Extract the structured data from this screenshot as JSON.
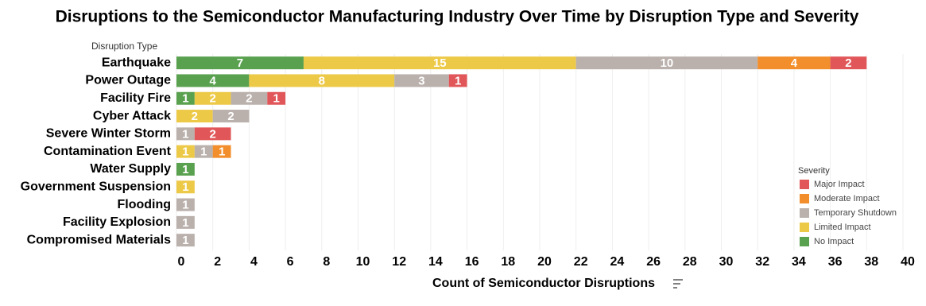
{
  "chart_data": {
    "type": "stacked-bar-horizontal",
    "title": "Disruptions to the Semiconductor Manufacturing Industry Over Time by Disruption Type and Severity",
    "y_axis_title": "Disruption Type",
    "x_axis_title": "Count of Semiconductor Disruptions",
    "legend_title": "Severity",
    "legend_position": "right",
    "categories": [
      "Earthquake",
      "Power Outage",
      "Facility Fire",
      "Cyber Attack",
      "Severe Winter Storm",
      "Contamination Event",
      "Water Supply",
      "Government Suspension",
      "Flooding",
      "Facility Explosion",
      "Compromised Materials"
    ],
    "series": [
      {
        "name": "No Impact",
        "color": "#59a14f",
        "values": [
          7,
          4,
          1,
          null,
          null,
          null,
          1,
          null,
          null,
          null,
          null
        ]
      },
      {
        "name": "Limited Impact",
        "color": "#edc948",
        "values": [
          15,
          8,
          2,
          2,
          null,
          1,
          null,
          1,
          null,
          null,
          null
        ]
      },
      {
        "name": "Temporary Shutdown",
        "color": "#bab0ac",
        "values": [
          10,
          3,
          2,
          2,
          1,
          1,
          null,
          null,
          1,
          1,
          1
        ]
      },
      {
        "name": "Moderate Impact",
        "color": "#f28e2b",
        "values": [
          4,
          null,
          null,
          null,
          null,
          1,
          null,
          null,
          null,
          null,
          null
        ]
      },
      {
        "name": "Major Impact",
        "color": "#e15759",
        "values": [
          2,
          1,
          1,
          null,
          2,
          null,
          null,
          null,
          null,
          null,
          null
        ]
      }
    ],
    "xlim": [
      0,
      40
    ],
    "xticks": [
      0,
      2,
      4,
      6,
      8,
      10,
      12,
      14,
      16,
      18,
      20,
      22,
      24,
      26,
      28,
      30,
      32,
      34,
      36,
      38,
      40
    ],
    "grid": true
  }
}
